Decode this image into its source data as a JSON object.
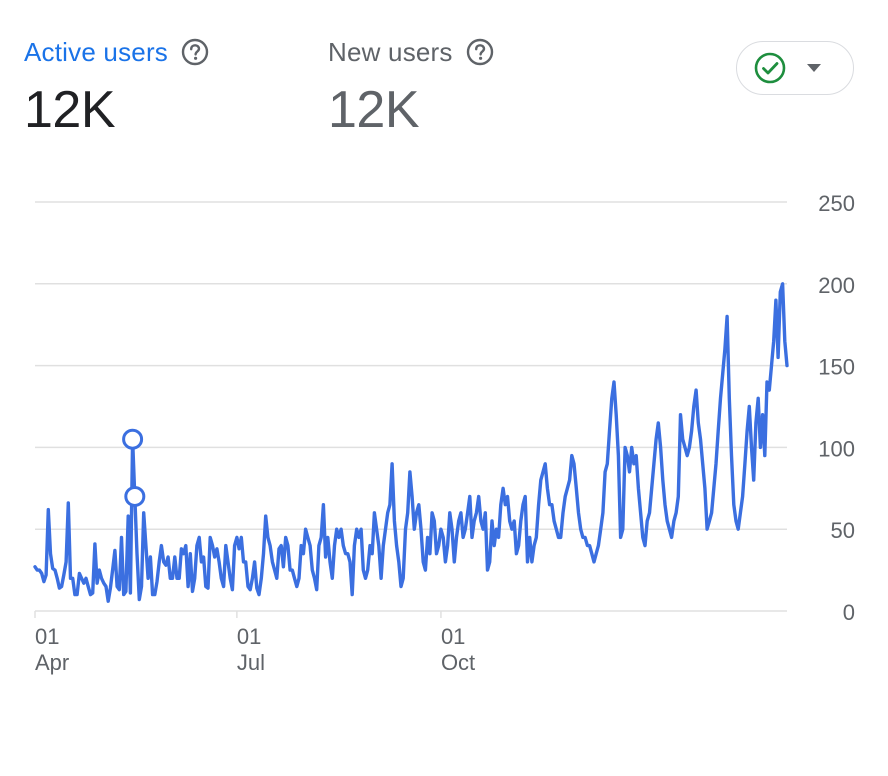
{
  "metrics": [
    {
      "label": "Active users",
      "value": "12K",
      "help_icon": "help-circle-icon"
    },
    {
      "label": "New users",
      "value": "12K",
      "help_icon": "help-circle-icon"
    }
  ],
  "compare_button": {
    "icon": "check-circle-icon",
    "caret": "caret-down-icon"
  },
  "colors": {
    "accent": "#1a73e8",
    "series": "#3b6fe0",
    "grid": "#e0e0e0",
    "axis_text": "#5f6368",
    "check": "#1e8e3e"
  },
  "chart_data": {
    "type": "line",
    "y_ticks": [
      "250",
      "200",
      "150",
      "100",
      "50",
      "0"
    ],
    "ylim": [
      0,
      250
    ],
    "x_tick_labels": [
      {
        "day": "01",
        "month": "Apr"
      },
      {
        "day": "01",
        "month": "Jul"
      },
      {
        "day": "01",
        "month": "Oct"
      }
    ],
    "x_tick_index": [
      0,
      91,
      183
    ],
    "grid": true,
    "series": [
      {
        "values": [
          27,
          25,
          25,
          23,
          18,
          22,
          62,
          35,
          26,
          25,
          20,
          14,
          15,
          22,
          30,
          66,
          20,
          20,
          10,
          10,
          23,
          20,
          17,
          20,
          15,
          10,
          11,
          41,
          17,
          25,
          20,
          17,
          15,
          6,
          14,
          25,
          37,
          15,
          13,
          45,
          10,
          12,
          58,
          11,
          105,
          70,
          35,
          7,
          15,
          60,
          40,
          20,
          33,
          10,
          10,
          18,
          30,
          40,
          30,
          28,
          33,
          20,
          20,
          33,
          20,
          20,
          38,
          35,
          40,
          15,
          35,
          12,
          20,
          40,
          45,
          30,
          33,
          15,
          14,
          45,
          40,
          33,
          38,
          30,
          20,
          15,
          40,
          30,
          20,
          13,
          40,
          45,
          38,
          45,
          30,
          30,
          15,
          13,
          20,
          30,
          14,
          10,
          20,
          35,
          58,
          45,
          40,
          30,
          25,
          20,
          38,
          40,
          27,
          45,
          40,
          25,
          25,
          20,
          15,
          20,
          40,
          35,
          50,
          45,
          40,
          25,
          20,
          13,
          40,
          45,
          65,
          33,
          45,
          30,
          20,
          40,
          50,
          45,
          50,
          40,
          35,
          35,
          30,
          10,
          40,
          50,
          45,
          50,
          25,
          20,
          25,
          40,
          35,
          60,
          50,
          40,
          20,
          40,
          50,
          60,
          65,
          90,
          55,
          40,
          30,
          15,
          20,
          50,
          60,
          85,
          70,
          50,
          60,
          65,
          50,
          30,
          25,
          45,
          35,
          60,
          55,
          35,
          40,
          50,
          45,
          30,
          40,
          60,
          50,
          30,
          45,
          55,
          60,
          45,
          50,
          60,
          70,
          45,
          55,
          60,
          70,
          55,
          50,
          60,
          25,
          30,
          55,
          40,
          50,
          45,
          65,
          75,
          65,
          70,
          55,
          50,
          55,
          35,
          40,
          55,
          65,
          70,
          30,
          45,
          30,
          40,
          45,
          65,
          80,
          85,
          90,
          75,
          65,
          65,
          55,
          50,
          45,
          45,
          60,
          70,
          75,
          80,
          95,
          90,
          75,
          60,
          50,
          45,
          45,
          40,
          40,
          35,
          30,
          35,
          40,
          50,
          60,
          85,
          90,
          110,
          130,
          140,
          120,
          95,
          45,
          50,
          100,
          95,
          85,
          100,
          90,
          95,
          75,
          60,
          45,
          40,
          55,
          60,
          75,
          90,
          105,
          115,
          100,
          80,
          65,
          55,
          50,
          45,
          55,
          60,
          70,
          120,
          105,
          100,
          95,
          100,
          110,
          125,
          135,
          115,
          105,
          90,
          75,
          50,
          55,
          60,
          75,
          90,
          110,
          130,
          145,
          160,
          180,
          130,
          95,
          65,
          55,
          50,
          60,
          70,
          90,
          110,
          125,
          100,
          80,
          115,
          130,
          100,
          120,
          95,
          140,
          135,
          150,
          165,
          190,
          155,
          195,
          200,
          165,
          150
        ]
      }
    ],
    "highlight_indices": [
      44,
      45
    ]
  }
}
